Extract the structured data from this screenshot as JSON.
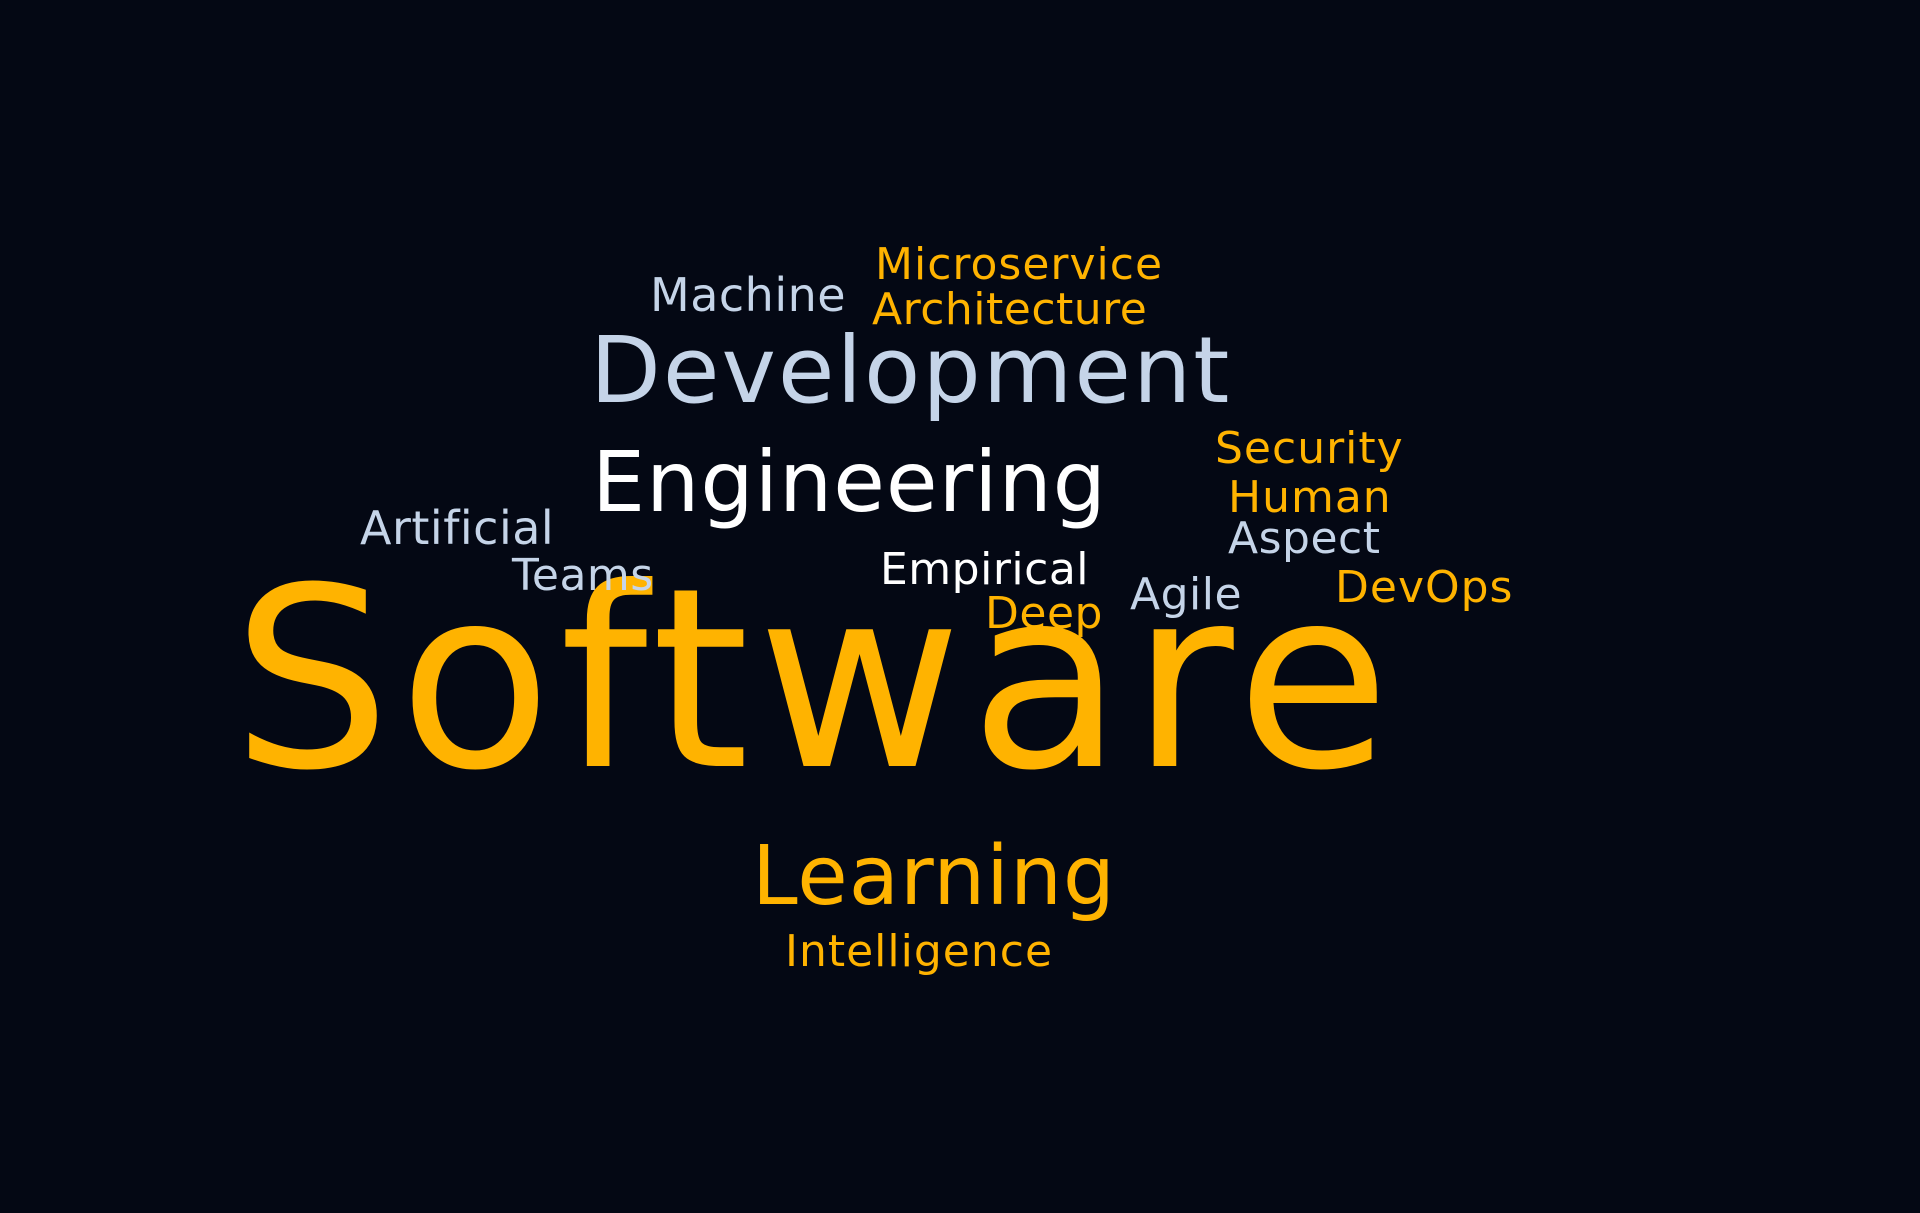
{
  "colors": {
    "background": "#040814",
    "gold": "#FFB300",
    "blue": "#C5D4E8",
    "white": "#FFFFFF"
  },
  "words": {
    "software": "Software",
    "development": "Development",
    "engineering": "Engineering",
    "learning": "Learning",
    "machine": "Machine",
    "microservice": "Microservice",
    "architecture": "Architecture",
    "security": "Security",
    "human": "Human",
    "aspect": "Aspect",
    "artificial": "Artificial",
    "teams": "Teams",
    "empirical": "Empirical",
    "agile": "Agile",
    "devops": "DevOps",
    "deep": "Deep",
    "intelligence": "Intelligence"
  }
}
